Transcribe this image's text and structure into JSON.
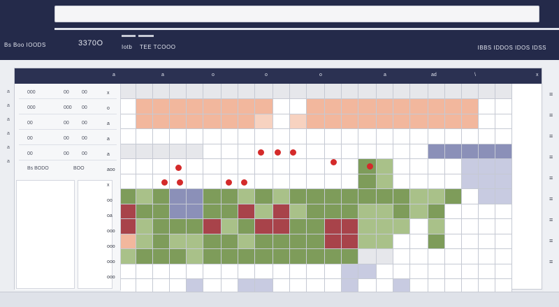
{
  "header": {
    "brand": "Bs Boo IOODS",
    "code": "3370O",
    "tabs": [
      "Iotb",
      "TEE TCOOO"
    ],
    "right_info": "IBBS IDDOS IDOS IDSS"
  },
  "column_marks": [
    "a",
    "a",
    "o",
    "o",
    "o",
    "a",
    "ad",
    "\\",
    "x"
  ],
  "left_panel": {
    "rows": [
      {
        "a": "000",
        "b": "00",
        "c": "00"
      },
      {
        "a": "000",
        "b": "000",
        "c": "00"
      },
      {
        "a": "00",
        "b": "00",
        "c": "00"
      },
      {
        "a": "00",
        "b": "00",
        "c": "00"
      },
      {
        "a": "00",
        "b": "00",
        "c": "00"
      }
    ],
    "caption_left": "Bs BODO",
    "caption_right": "BOO"
  },
  "row_labels": [
    "x",
    "o",
    "a",
    "a",
    "a",
    "aoo",
    "x",
    "oo",
    "oa",
    "ooo",
    "ooo",
    "ooo",
    "ooo"
  ],
  "side_marks": [
    "a",
    "a",
    "a",
    "a",
    "a",
    "a"
  ],
  "right_edge_marks": [
    "≡",
    "≡",
    "≡",
    "≡",
    "≡",
    "≡",
    "≡",
    "≡",
    "≡"
  ],
  "colors": {
    "salmon": "#f2b79d",
    "salmon_light": "#f7d2c0",
    "green": "#7e9c5a",
    "green_light": "#a9c189",
    "red": "#a8434a",
    "lavender": "#8b90b8",
    "lavender_light": "#c8cbe1",
    "grey": "#e6e7eb",
    "white": "#ffffff"
  }
}
